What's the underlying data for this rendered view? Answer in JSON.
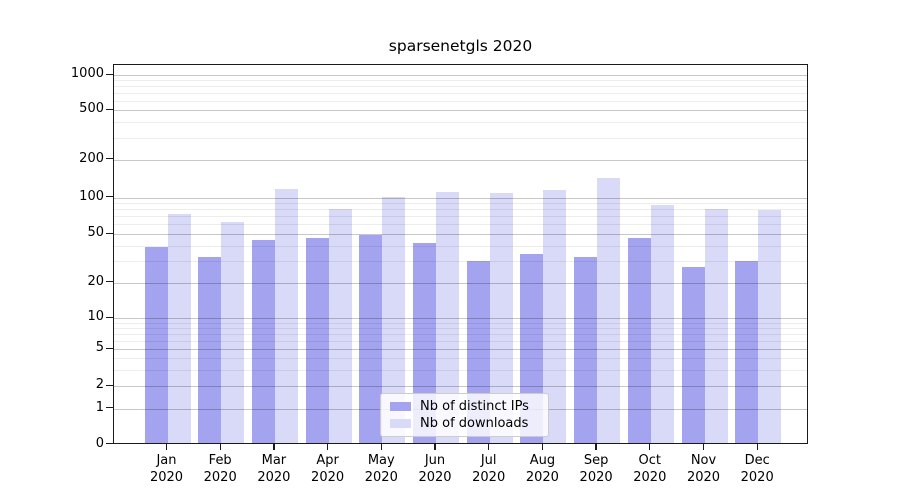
{
  "chart_data": {
    "type": "bar",
    "title": "sparsenetgls 2020",
    "categories": [
      "Jan",
      "Feb",
      "Mar",
      "Apr",
      "May",
      "Jun",
      "Jul",
      "Aug",
      "Sep",
      "Oct",
      "Nov",
      "Dec"
    ],
    "year": "2020",
    "series": [
      {
        "name": "Nb of distinct IPs",
        "color": "#a3a3f0",
        "values": [
          38,
          31,
          43,
          45,
          47,
          41,
          29,
          33,
          31,
          45,
          26,
          29
        ]
      },
      {
        "name": "Nb of downloads",
        "color": "#d9d9f8",
        "values": [
          70,
          60,
          112,
          78,
          97,
          106,
          105,
          110,
          138,
          84,
          78,
          76
        ]
      }
    ],
    "xlabel": "",
    "ylabel": "",
    "yscale": "symlog",
    "y_ticks": [
      0,
      1,
      2,
      5,
      10,
      20,
      50,
      100,
      200,
      500,
      1000
    ],
    "y_minor_ticks": [
      3,
      4,
      6,
      7,
      8,
      9,
      30,
      40,
      60,
      70,
      80,
      90,
      300,
      400,
      600,
      700,
      800,
      900
    ],
    "ylim": [
      0,
      1200
    ],
    "grid": true,
    "legend_position": "lower center"
  },
  "colors": {
    "ip_bar": "#a3a3f0",
    "download_bar": "#d9d9f8",
    "major_grid": "#c7c7c7",
    "minor_grid": "#ececec",
    "spine": "#1a1a1a",
    "background": "#ffffff"
  }
}
